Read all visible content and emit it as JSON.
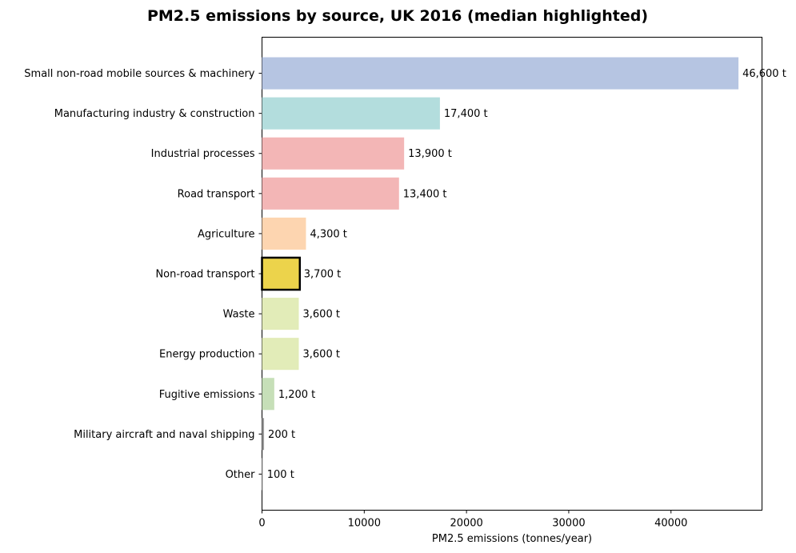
{
  "chart_data": {
    "type": "bar",
    "orientation": "horizontal",
    "title": "PM2.5 emissions by source, UK 2016 (median highlighted)",
    "xlabel": "PM2.5 emissions (tonnes/year)",
    "ylabel": "",
    "xlim": [
      0,
      48900
    ],
    "xticks": [
      0,
      10000,
      20000,
      30000,
      40000
    ],
    "xtick_labels": [
      "0",
      "10000",
      "20000",
      "30000",
      "40000"
    ],
    "grid": false,
    "highlighted_category": "Non-road transport",
    "highlight_outline_color": "#000000",
    "categories": [
      "Small non-road mobile sources & machinery",
      "Manufacturing industry & construction",
      "Industrial processes",
      "Road transport",
      "Agriculture",
      "Non-road transport",
      "Waste",
      "Energy production",
      "Fugitive emissions",
      "Military aircraft and naval shipping",
      "Other"
    ],
    "values": [
      46600,
      17400,
      13900,
      13400,
      4300,
      3700,
      3600,
      3600,
      1200,
      200,
      100
    ],
    "value_labels": [
      "46,600 t",
      "17,400 t",
      "13,900 t",
      "13,400 t",
      "4,300 t",
      "3,700 t",
      "3,600 t",
      "3,600 t",
      "1,200 t",
      "200 t",
      "100 t"
    ],
    "colors": [
      "#b6c5e2",
      "#b3dddd",
      "#f3b6b6",
      "#f3b6b6",
      "#fdd5b0",
      "#ecd34b",
      "#e2ecb8",
      "#e2ecb8",
      "#c6dfb8",
      "#9a9a9a",
      "#cccccc"
    ]
  }
}
